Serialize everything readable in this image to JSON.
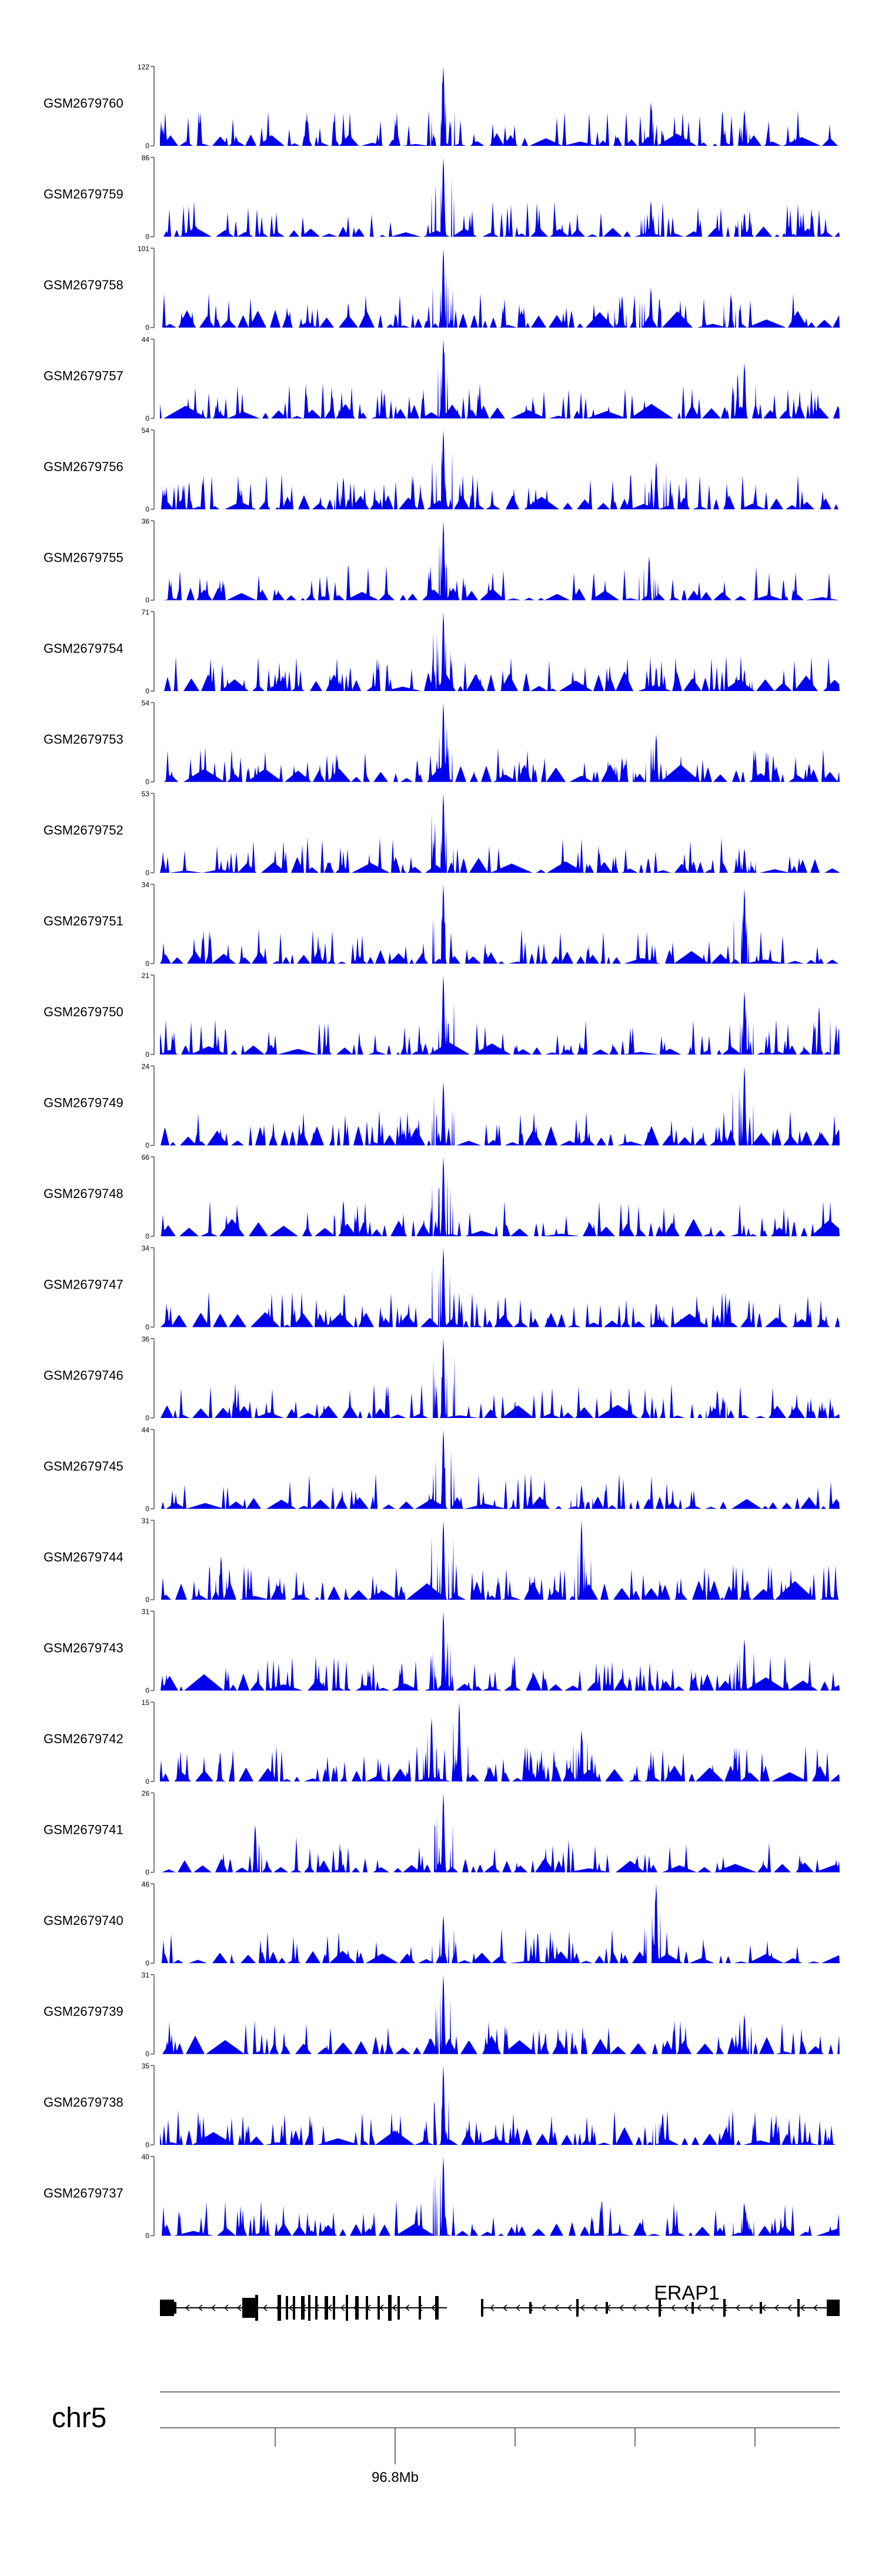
{
  "chart_data": {
    "type": "area",
    "title": "",
    "chromosome": "chr5",
    "xaxis_tick_label": "96.8Mb",
    "gene_label": "ERAP1",
    "fill_color": "#0000ee",
    "baseline_value": "0",
    "ylim_note": "each track scaled from 0 to its own maximum",
    "peak_centers": [
      0.417,
      0.44,
      0.47,
      0.722,
      0.85,
      0.86
    ],
    "tracks": [
      {
        "name": "GSM2679760",
        "ymax": "122",
        "peaks": [
          {
            "x": 0.417,
            "h": 1.0
          },
          {
            "x": 0.722,
            "h": 0.55
          },
          {
            "x": 0.86,
            "h": 0.45
          }
        ]
      },
      {
        "name": "GSM2679759",
        "ymax": "86",
        "peaks": [
          {
            "x": 0.417,
            "h": 1.0
          },
          {
            "x": 0.722,
            "h": 0.45
          },
          {
            "x": 0.86,
            "h": 0.3
          }
        ]
      },
      {
        "name": "GSM2679758",
        "ymax": "101",
        "peaks": [
          {
            "x": 0.417,
            "h": 1.0
          },
          {
            "x": 0.68,
            "h": 0.4
          },
          {
            "x": 0.722,
            "h": 0.5
          },
          {
            "x": 0.84,
            "h": 0.42
          }
        ]
      },
      {
        "name": "GSM2679757",
        "ymax": "44",
        "peaks": [
          {
            "x": 0.417,
            "h": 1.0
          },
          {
            "x": 0.86,
            "h": 0.7
          }
        ]
      },
      {
        "name": "GSM2679756",
        "ymax": "54",
        "peaks": [
          {
            "x": 0.417,
            "h": 1.0
          },
          {
            "x": 0.27,
            "h": 0.4
          },
          {
            "x": 0.73,
            "h": 0.6
          }
        ]
      },
      {
        "name": "GSM2679755",
        "ymax": "36",
        "peaks": [
          {
            "x": 0.417,
            "h": 1.0
          },
          {
            "x": 0.72,
            "h": 0.55
          }
        ]
      },
      {
        "name": "GSM2679754",
        "ymax": "71",
        "peaks": [
          {
            "x": 0.417,
            "h": 1.0
          },
          {
            "x": 0.73,
            "h": 0.3
          },
          {
            "x": 0.86,
            "h": 0.25
          }
        ]
      },
      {
        "name": "GSM2679753",
        "ymax": "54",
        "peaks": [
          {
            "x": 0.417,
            "h": 1.0
          },
          {
            "x": 0.73,
            "h": 0.6
          },
          {
            "x": 0.68,
            "h": 0.3
          }
        ]
      },
      {
        "name": "GSM2679752",
        "ymax": "53",
        "peaks": [
          {
            "x": 0.417,
            "h": 1.0
          },
          {
            "x": 0.86,
            "h": 0.3
          }
        ]
      },
      {
        "name": "GSM2679751",
        "ymax": "34",
        "peaks": [
          {
            "x": 0.417,
            "h": 1.0
          },
          {
            "x": 0.86,
            "h": 0.95
          }
        ]
      },
      {
        "name": "GSM2679750",
        "ymax": "21",
        "peaks": [
          {
            "x": 0.417,
            "h": 1.0
          },
          {
            "x": 0.86,
            "h": 0.8
          },
          {
            "x": 0.97,
            "h": 0.6
          }
        ]
      },
      {
        "name": "GSM2679749",
        "ymax": "24",
        "peaks": [
          {
            "x": 0.417,
            "h": 0.8
          },
          {
            "x": 0.86,
            "h": 1.0
          }
        ]
      },
      {
        "name": "GSM2679748",
        "ymax": "66",
        "peaks": [
          {
            "x": 0.417,
            "h": 1.0
          },
          {
            "x": 0.27,
            "h": 0.45
          }
        ]
      },
      {
        "name": "GSM2679747",
        "ymax": "34",
        "peaks": [
          {
            "x": 0.417,
            "h": 1.0
          },
          {
            "x": 0.73,
            "h": 0.3
          }
        ]
      },
      {
        "name": "GSM2679746",
        "ymax": "36",
        "peaks": [
          {
            "x": 0.417,
            "h": 1.0
          },
          {
            "x": 0.82,
            "h": 0.35
          }
        ]
      },
      {
        "name": "GSM2679745",
        "ymax": "44",
        "peaks": [
          {
            "x": 0.417,
            "h": 1.0
          },
          {
            "x": 0.62,
            "h": 0.3
          }
        ]
      },
      {
        "name": "GSM2679744",
        "ymax": "31",
        "peaks": [
          {
            "x": 0.417,
            "h": 1.0
          },
          {
            "x": 0.62,
            "h": 1.0
          },
          {
            "x": 0.09,
            "h": 0.55
          }
        ]
      },
      {
        "name": "GSM2679743",
        "ymax": "31",
        "peaks": [
          {
            "x": 0.417,
            "h": 1.0
          },
          {
            "x": 0.86,
            "h": 0.65
          }
        ]
      },
      {
        "name": "GSM2679742",
        "ymax": "15",
        "peaks": [
          {
            "x": 0.44,
            "h": 1.0
          },
          {
            "x": 0.4,
            "h": 0.8
          },
          {
            "x": 0.62,
            "h": 0.65
          }
        ]
      },
      {
        "name": "GSM2679741",
        "ymax": "26",
        "peaks": [
          {
            "x": 0.417,
            "h": 1.0
          },
          {
            "x": 0.14,
            "h": 0.6
          }
        ]
      },
      {
        "name": "GSM2679740",
        "ymax": "46",
        "peaks": [
          {
            "x": 0.417,
            "h": 0.6
          },
          {
            "x": 0.73,
            "h": 1.0
          }
        ]
      },
      {
        "name": "GSM2679739",
        "ymax": "31",
        "peaks": [
          {
            "x": 0.417,
            "h": 1.0
          },
          {
            "x": 0.86,
            "h": 0.5
          }
        ]
      },
      {
        "name": "GSM2679738",
        "ymax": "35",
        "peaks": [
          {
            "x": 0.417,
            "h": 1.0
          },
          {
            "x": 0.74,
            "h": 0.4
          }
        ]
      },
      {
        "name": "GSM2679737",
        "ymax": "40",
        "peaks": [
          {
            "x": 0.417,
            "h": 1.0
          },
          {
            "x": 0.86,
            "h": 0.4
          }
        ]
      }
    ]
  }
}
